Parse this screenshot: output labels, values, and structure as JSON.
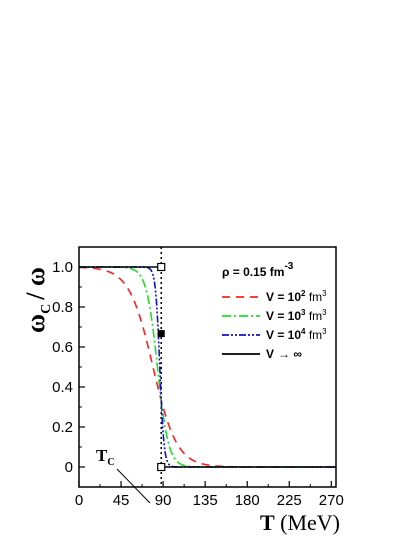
{
  "chart_data": {
    "type": "line",
    "xlabel": {
      "bold": "T",
      "unit": "(MeV)"
    },
    "ylabel": {
      "omega": "ω",
      "sub": "C",
      "rest": "/ ω"
    },
    "xlim": [
      0,
      275
    ],
    "ylim": [
      -0.1,
      1.1
    ],
    "xticks": [
      "0",
      "45",
      "90",
      "135",
      "180",
      "225",
      "270"
    ],
    "yticks": [
      "0",
      "0.2",
      "0.4",
      "0.6",
      "0.8",
      "1.0"
    ],
    "xtick_values": [
      0,
      45,
      90,
      135,
      180,
      225,
      270
    ],
    "ytick_values": [
      0,
      0.2,
      0.4,
      0.6,
      0.8,
      1.0
    ],
    "legend_title": {
      "text": "ρ = 0.15 fm",
      "sup": "-3"
    },
    "tc_label": {
      "main": "T",
      "sub": "C"
    },
    "tc_value": 88,
    "legend_position": "top-right",
    "series": [
      {
        "name": "V = 10² fm³",
        "v_base": "V = 10",
        "v_exp": "2",
        "v_unit": " fm",
        "v_unit_exp": "3",
        "color": "#ff2020",
        "dash": "8,6",
        "width_T": 28
      },
      {
        "name": "V = 10³ fm³",
        "v_base": "V = 10",
        "v_exp": "3",
        "v_unit": " fm",
        "v_unit_exp": "3",
        "color": "#22dd22",
        "dash": "9,3,2,3",
        "width_T": 13
      },
      {
        "name": "V = 10⁴ fm³",
        "v_base": "V = 10",
        "v_exp": "4",
        "v_unit": " fm",
        "v_unit_exp": "3",
        "color": "#1010cc",
        "dash": "7,2,2,2,2,2",
        "width_T": 5
      },
      {
        "name": "V → ∞",
        "v_base": "V",
        "v_exp": "",
        "v_unit": "",
        "v_unit_exp": "",
        "color": "#000000",
        "dash": "",
        "width_T": 0
      }
    ],
    "markers": {
      "open_squares": [
        [
          88,
          1.0
        ],
        [
          88,
          0.0
        ]
      ],
      "filled_square": [
        88,
        0.667
      ]
    }
  }
}
